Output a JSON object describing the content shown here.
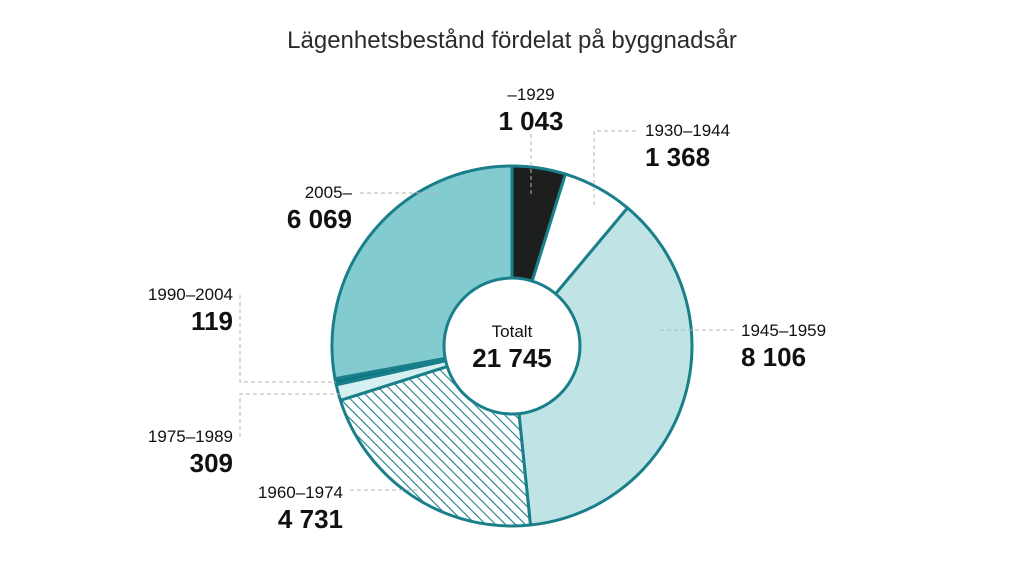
{
  "chart_data": {
    "type": "pie",
    "donut": true,
    "title": "Lägenhetsbestånd fördelat på byggnadsår",
    "center_label": "Totalt",
    "center_value": "21 745",
    "total": 21745,
    "slices": [
      {
        "label": "–1929",
        "value": 1043,
        "value_text": "1 043",
        "fill": "#1c1f1c",
        "pattern": "solid"
      },
      {
        "label": "1930–1944",
        "value": 1368,
        "value_text": "1 368",
        "fill": "#ffffff",
        "pattern": "solid"
      },
      {
        "label": "1945–1959",
        "value": 8106,
        "value_text": "8 106",
        "fill": "#c0e4e6",
        "pattern": "solid"
      },
      {
        "label": "1960–1974",
        "value": 4731,
        "value_text": "4 731",
        "fill": "#1a7f8a",
        "pattern": "hatched"
      },
      {
        "label": "1975–1989",
        "value": 309,
        "value_text": "309",
        "fill": "#d6eff1",
        "pattern": "solid"
      },
      {
        "label": "1990–2004",
        "value": 119,
        "value_text": "119",
        "fill": "#0e7783",
        "pattern": "solid"
      },
      {
        "label": "2005–",
        "value": 6069,
        "value_text": "6 069",
        "fill": "#82cbce",
        "pattern": "solid"
      }
    ],
    "colors": {
      "stroke": "#1a7f8a",
      "text": "#111111"
    }
  }
}
